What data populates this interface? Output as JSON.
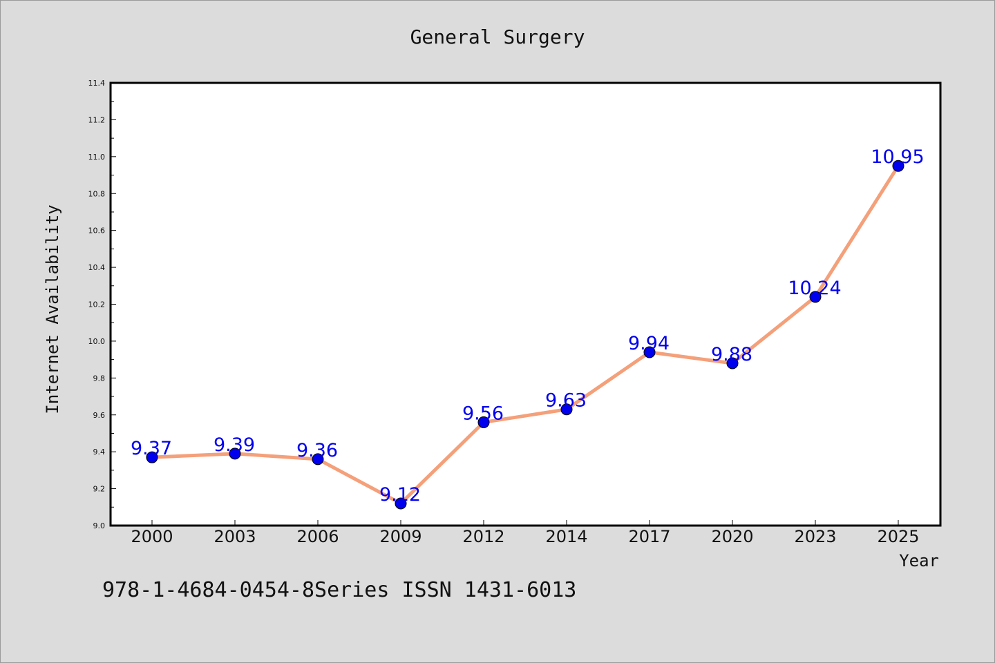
{
  "chart_data": {
    "type": "line",
    "title": "General Surgery",
    "xlabel": "Year",
    "ylabel": "Internet Availability",
    "categories": [
      "2000",
      "2003",
      "2006",
      "2009",
      "2012",
      "2014",
      "2017",
      "2020",
      "2023",
      "2025"
    ],
    "series": [
      {
        "values": [
          9.37,
          9.39,
          9.36,
          9.12,
          9.56,
          9.63,
          9.94,
          9.88,
          10.24,
          10.95
        ]
      }
    ],
    "data_labels": [
      "9.37",
      "9.39",
      "9.36",
      "9.12",
      "9.56",
      "9.63",
      "9.94",
      "9.88",
      "10.24",
      "10.95"
    ],
    "ylim": [
      9.0,
      11.4
    ],
    "yticks": [
      "9.0",
      "9.2",
      "9.4",
      "9.6",
      "9.8",
      "10.0",
      "10.2",
      "10.4",
      "10.6",
      "10.8",
      "11.0",
      "11.2",
      "11.4"
    ],
    "grid": false,
    "line_color": "#f4a07a",
    "marker_color": "#0000ee",
    "label_color": "#0000ee"
  },
  "footnote": "978-1-4684-0454-8Series ISSN 1431-6013"
}
